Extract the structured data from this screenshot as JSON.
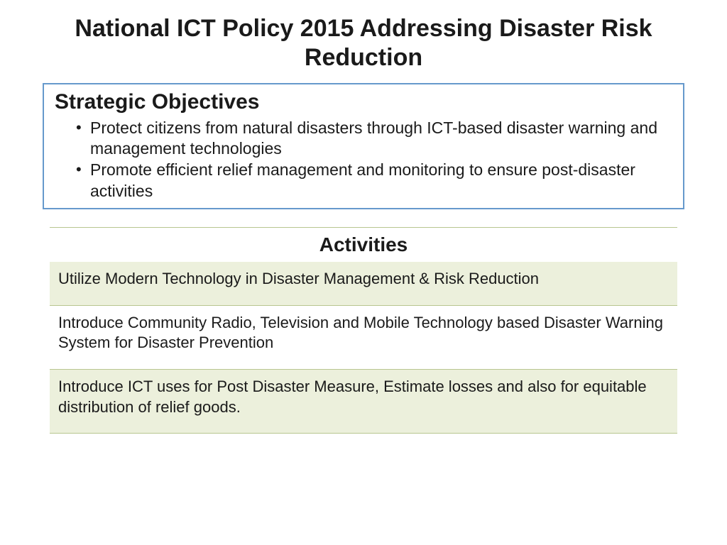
{
  "title": "National ICT Policy 2015 Addressing Disaster Risk Reduction",
  "objectives": {
    "heading": "Strategic Objectives",
    "items": [
      "Protect citizens from natural disasters through ICT-based disaster warning and management technologies",
      "Promote efficient relief management and monitoring to ensure post-disaster activities"
    ]
  },
  "activities": {
    "heading": "Activities",
    "rows": [
      {
        "text": "Utilize Modern Technology in Disaster Management & Risk Reduction",
        "shaded": true
      },
      {
        "text": "Introduce Community Radio, Television and Mobile Technology based Disaster Warning System for  Disaster Prevention",
        "shaded": false
      },
      {
        "text": "Introduce ICT uses for Post Disaster Measure, Estimate losses and also for equitable distribution of relief goods.",
        "shaded": true
      }
    ]
  },
  "colors": {
    "box_border": "#6699cc",
    "hr_line": "#b8c690",
    "shaded_bg": "#ecf0dc",
    "text": "#1a1a1a",
    "background": "#ffffff"
  }
}
